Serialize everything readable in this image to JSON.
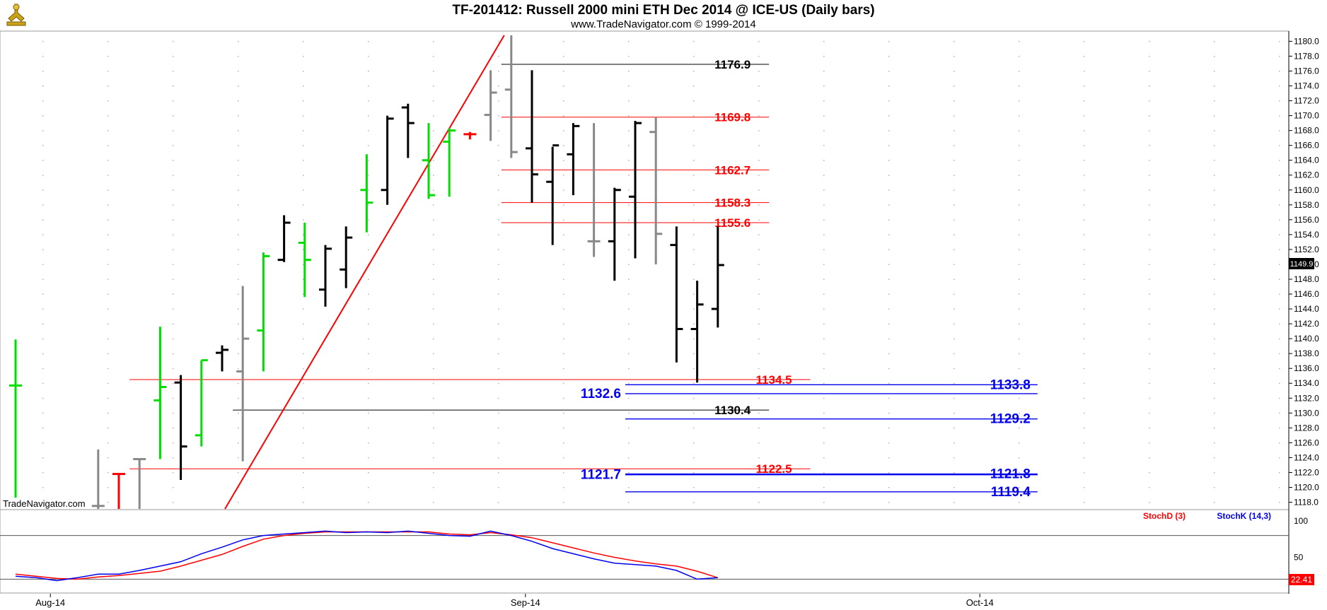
{
  "header": {
    "title": "TF-201412:  Russell 2000 mini ETH Dec 2014 @ ICE-US  (Daily bars)",
    "subtitle": "www.TradeNavigator.com © 1999-2014",
    "watermark": "TradeNavigator.com"
  },
  "colors": {
    "background": "#ffffff",
    "bar_black": "#000000",
    "bar_gray": "#888888",
    "bar_green": "#00dd00",
    "bar_red": "#ff0000",
    "level_red": "#ff0000",
    "level_black": "#000000",
    "level_blue": "#0000ee",
    "trendline": "#ff0000",
    "stoch_d": "#ff0000",
    "stoch_k": "#0000ee",
    "last_price_bg": "#000000",
    "stoch_value_bg": "#ff0000"
  },
  "chart_data": {
    "type": "ohlc",
    "price_axis": {
      "min": 1117.1,
      "max": 1180.8,
      "ticks": [
        1118.0,
        1120.0,
        1122.0,
        1124.0,
        1126.0,
        1128.0,
        1130.0,
        1132.0,
        1134.0,
        1136.0,
        1138.0,
        1140.0,
        1142.0,
        1144.0,
        1146.0,
        1148.0,
        1150.0,
        1152.0,
        1154.0,
        1156.0,
        1158.0,
        1160.0,
        1162.0,
        1164.0,
        1166.0,
        1168.0,
        1170.0,
        1172.0,
        1174.0,
        1176.0,
        1178.0,
        1180.0
      ],
      "last_price": "1149.9"
    },
    "x_labels": [
      {
        "label": "Aug-14",
        "bar": 1
      },
      {
        "label": "Sep-14",
        "bar": 24
      },
      {
        "label": "Oct-14",
        "bar": 46
      }
    ],
    "bars": [
      {
        "i": 0,
        "h": 1139.9,
        "l": 1117.1,
        "o": 1133.7,
        "c": 1133.7,
        "col": "green"
      },
      {
        "i": 3,
        "h": 1118.6,
        "l": 1117.1,
        "o": 1118.0,
        "c": 1118.0,
        "col": "black"
      },
      {
        "i": 4,
        "h": 1125.1,
        "l": 1117.1,
        "o": 1117.5,
        "c": 1117.5,
        "col": "gray"
      },
      {
        "i": 5,
        "h": 1121.8,
        "l": 1117.1,
        "o": 1121.8,
        "c": 1121.8,
        "col": "red"
      },
      {
        "i": 6,
        "h": 1123.8,
        "l": 1117.1,
        "o": 1123.8,
        "c": 1123.8,
        "col": "gray"
      },
      {
        "i": 7,
        "h": 1141.6,
        "l": 1123.8,
        "o": 1131.7,
        "c": 1133.5,
        "col": "green"
      },
      {
        "i": 8,
        "h": 1135.1,
        "l": 1121.0,
        "o": 1134.1,
        "c": 1125.5,
        "col": "black"
      },
      {
        "i": 9,
        "h": 1137.1,
        "l": 1125.5,
        "o": 1127.0,
        "c": 1137.1,
        "col": "green"
      },
      {
        "i": 10,
        "h": 1139.1,
        "l": 1135.6,
        "o": 1138.1,
        "c": 1138.5,
        "col": "black"
      },
      {
        "i": 11,
        "h": 1147.1,
        "l": 1123.5,
        "o": 1135.6,
        "c": 1140.0,
        "col": "gray"
      },
      {
        "i": 12,
        "h": 1151.6,
        "l": 1135.6,
        "o": 1141.1,
        "c": 1151.1,
        "col": "green"
      },
      {
        "i": 13,
        "h": 1156.6,
        "l": 1150.3,
        "o": 1150.6,
        "c": 1155.6,
        "col": "black"
      },
      {
        "i": 14,
        "h": 1155.6,
        "l": 1145.6,
        "o": 1152.9,
        "c": 1150.6,
        "col": "green"
      },
      {
        "i": 15,
        "h": 1152.6,
        "l": 1144.3,
        "o": 1146.6,
        "c": 1152.1,
        "col": "black"
      },
      {
        "i": 16,
        "h": 1155.1,
        "l": 1146.8,
        "o": 1149.3,
        "c": 1153.6,
        "col": "black"
      },
      {
        "i": 17,
        "h": 1164.8,
        "l": 1154.3,
        "o": 1160.0,
        "c": 1158.3,
        "col": "green"
      },
      {
        "i": 18,
        "h": 1170.0,
        "l": 1158.0,
        "o": 1160.0,
        "c": 1169.6,
        "col": "black"
      },
      {
        "i": 19,
        "h": 1171.6,
        "l": 1164.3,
        "o": 1171.1,
        "c": 1169.0,
        "col": "black"
      },
      {
        "i": 20,
        "h": 1169.0,
        "l": 1158.8,
        "o": 1164.0,
        "c": 1159.3,
        "col": "green"
      },
      {
        "i": 21,
        "h": 1168.3,
        "l": 1159.1,
        "o": 1166.5,
        "c": 1168.0,
        "col": "green"
      },
      {
        "i": 22,
        "h": 1167.8,
        "l": 1166.8,
        "o": 1167.5,
        "c": 1167.5,
        "col": "red"
      },
      {
        "i": 23,
        "h": 1176.1,
        "l": 1166.6,
        "o": 1170.1,
        "c": 1173.1,
        "col": "gray"
      },
      {
        "i": 24,
        "h": 1180.8,
        "l": 1164.3,
        "o": 1173.5,
        "c": 1165.1,
        "col": "gray"
      },
      {
        "i": 25,
        "h": 1176.1,
        "l": 1158.3,
        "o": 1165.6,
        "c": 1162.1,
        "col": "black"
      },
      {
        "i": 26,
        "h": 1165.8,
        "l": 1152.6,
        "o": 1161.1,
        "c": 1166.0,
        "col": "black"
      },
      {
        "i": 27,
        "h": 1169.0,
        "l": 1159.3,
        "o": 1164.8,
        "c": 1168.6,
        "col": "black"
      },
      {
        "i": 28,
        "h": 1169.0,
        "l": 1151.0,
        "o": 1153.1,
        "c": 1153.1,
        "col": "gray"
      },
      {
        "i": 29,
        "h": 1160.3,
        "l": 1147.8,
        "o": 1153.1,
        "c": 1160.0,
        "col": "black"
      },
      {
        "i": 30,
        "h": 1169.3,
        "l": 1150.8,
        "o": 1159.1,
        "c": 1169.0,
        "col": "black"
      },
      {
        "i": 31,
        "h": 1169.8,
        "l": 1150.0,
        "o": 1167.8,
        "c": 1154.1,
        "col": "gray"
      },
      {
        "i": 32,
        "h": 1155.1,
        "l": 1136.8,
        "o": 1152.6,
        "c": 1141.3,
        "col": "black"
      },
      {
        "i": 33,
        "h": 1147.8,
        "l": 1134.1,
        "o": 1141.3,
        "c": 1144.6,
        "col": "black"
      },
      {
        "i": 34,
        "h": 1155.1,
        "l": 1141.5,
        "o": 1144.0,
        "c": 1149.9,
        "col": "black"
      }
    ],
    "levels": [
      {
        "value": 1176.9,
        "label": "1176.9",
        "color": "black",
        "from_bar": 24,
        "to_bar": 36,
        "label_side": "right",
        "fat": false
      },
      {
        "value": 1169.8,
        "label": "1169.8",
        "color": "red",
        "from_bar": 24,
        "to_bar": 36,
        "label_side": "right",
        "fat": false
      },
      {
        "value": 1162.7,
        "label": "1162.7",
        "color": "red",
        "from_bar": 24,
        "to_bar": 36,
        "label_side": "right",
        "fat": false
      },
      {
        "value": 1158.3,
        "label": "1158.3",
        "color": "red",
        "from_bar": 24,
        "to_bar": 36,
        "label_side": "right",
        "fat": false
      },
      {
        "value": 1155.6,
        "label": "1155.6",
        "color": "red",
        "from_bar": 24,
        "to_bar": 36,
        "label_side": "right",
        "fat": false
      },
      {
        "value": 1134.5,
        "label": "1134.5",
        "color": "red",
        "from_bar": 6,
        "to_bar": 38,
        "label_side": "right",
        "fat": false
      },
      {
        "value": 1133.8,
        "label": "1133.8",
        "color": "blue",
        "from_bar": 30,
        "to_bar": 49,
        "label_side": "right",
        "fat": true
      },
      {
        "value": 1132.6,
        "label": "1132.6",
        "color": "blue",
        "from_bar": 30,
        "to_bar": 49,
        "label_side": "left",
        "fat": true
      },
      {
        "value": 1130.4,
        "label": "1130.4",
        "color": "black",
        "from_bar": 11,
        "to_bar": 36,
        "label_side": "right",
        "fat": false
      },
      {
        "value": 1129.2,
        "label": "1129.2",
        "color": "blue",
        "from_bar": 30,
        "to_bar": 49,
        "label_side": "right",
        "fat": true
      },
      {
        "value": 1122.5,
        "label": "1122.5",
        "color": "red",
        "from_bar": 6,
        "to_bar": 38,
        "label_side": "right",
        "fat": false
      },
      {
        "value": 1121.8,
        "label": "1121.8",
        "color": "blue",
        "from_bar": 30,
        "to_bar": 49,
        "label_side": "right",
        "fat": true
      },
      {
        "value": 1121.7,
        "label": "1121.7",
        "color": "blue",
        "from_bar": 30,
        "to_bar": 49,
        "label_side": "left",
        "fat": true
      },
      {
        "value": 1119.4,
        "label": "1119.4",
        "color": "blue",
        "from_bar": 30,
        "to_bar": 49,
        "label_side": "right",
        "fat": true
      }
    ],
    "trendline": {
      "from": {
        "bar": 10,
        "price": 1117.1
      },
      "to": {
        "bar": 24,
        "price": 1180.8
      },
      "color": "red"
    },
    "stochastic": {
      "legend": [
        "StochD (3)",
        "StochK (14,3)"
      ],
      "range": [
        0,
        100
      ],
      "ticks": [
        50,
        100
      ],
      "reference_lines": [
        20,
        80
      ],
      "value_label": "22.41",
      "k": [
        [
          0,
          24
        ],
        [
          1,
          22
        ],
        [
          2,
          18
        ],
        [
          3,
          22
        ],
        [
          4,
          27
        ],
        [
          5,
          27
        ],
        [
          6,
          32
        ],
        [
          7,
          38
        ],
        [
          8,
          44
        ],
        [
          9,
          55
        ],
        [
          10,
          64
        ],
        [
          11,
          74
        ],
        [
          12,
          80
        ],
        [
          13,
          82
        ],
        [
          14,
          84
        ],
        [
          15,
          86
        ],
        [
          16,
          84
        ],
        [
          17,
          85
        ],
        [
          18,
          84
        ],
        [
          19,
          86
        ],
        [
          20,
          83
        ],
        [
          21,
          80
        ],
        [
          22,
          79
        ],
        [
          23,
          86
        ],
        [
          24,
          80
        ],
        [
          25,
          72
        ],
        [
          26,
          62
        ],
        [
          27,
          55
        ],
        [
          28,
          48
        ],
        [
          29,
          42
        ],
        [
          30,
          40
        ],
        [
          31,
          38
        ],
        [
          32,
          32
        ],
        [
          33,
          20
        ],
        [
          34,
          22
        ]
      ],
      "d": [
        [
          0,
          27
        ],
        [
          1,
          24
        ],
        [
          2,
          21
        ],
        [
          3,
          20
        ],
        [
          4,
          23
        ],
        [
          5,
          25
        ],
        [
          6,
          28
        ],
        [
          7,
          31
        ],
        [
          8,
          38
        ],
        [
          9,
          46
        ],
        [
          10,
          54
        ],
        [
          11,
          65
        ],
        [
          12,
          75
        ],
        [
          13,
          80
        ],
        [
          14,
          83
        ],
        [
          15,
          85
        ],
        [
          16,
          85
        ],
        [
          17,
          85
        ],
        [
          18,
          85
        ],
        [
          19,
          85
        ],
        [
          20,
          85
        ],
        [
          21,
          82
        ],
        [
          22,
          81
        ],
        [
          23,
          84
        ],
        [
          24,
          81
        ],
        [
          25,
          77
        ],
        [
          26,
          70
        ],
        [
          27,
          63
        ],
        [
          28,
          56
        ],
        [
          29,
          50
        ],
        [
          30,
          45
        ],
        [
          31,
          41
        ],
        [
          32,
          38
        ],
        [
          33,
          31
        ],
        [
          34,
          22
        ]
      ]
    }
  }
}
